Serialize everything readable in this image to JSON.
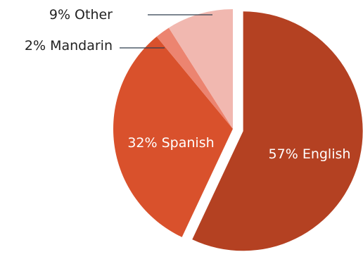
{
  "chart_data": {
    "type": "pie",
    "slices": [
      {
        "label": "57% English",
        "value": 57,
        "color": "#B44122",
        "exploded": true
      },
      {
        "label": "32% Spanish",
        "value": 32,
        "color": "#D9512C"
      },
      {
        "label": "2% Mandarin",
        "value": 2,
        "color": "#EC8470"
      },
      {
        "label": "9% Other",
        "value": 9,
        "color": "#F1B8B0"
      }
    ]
  }
}
